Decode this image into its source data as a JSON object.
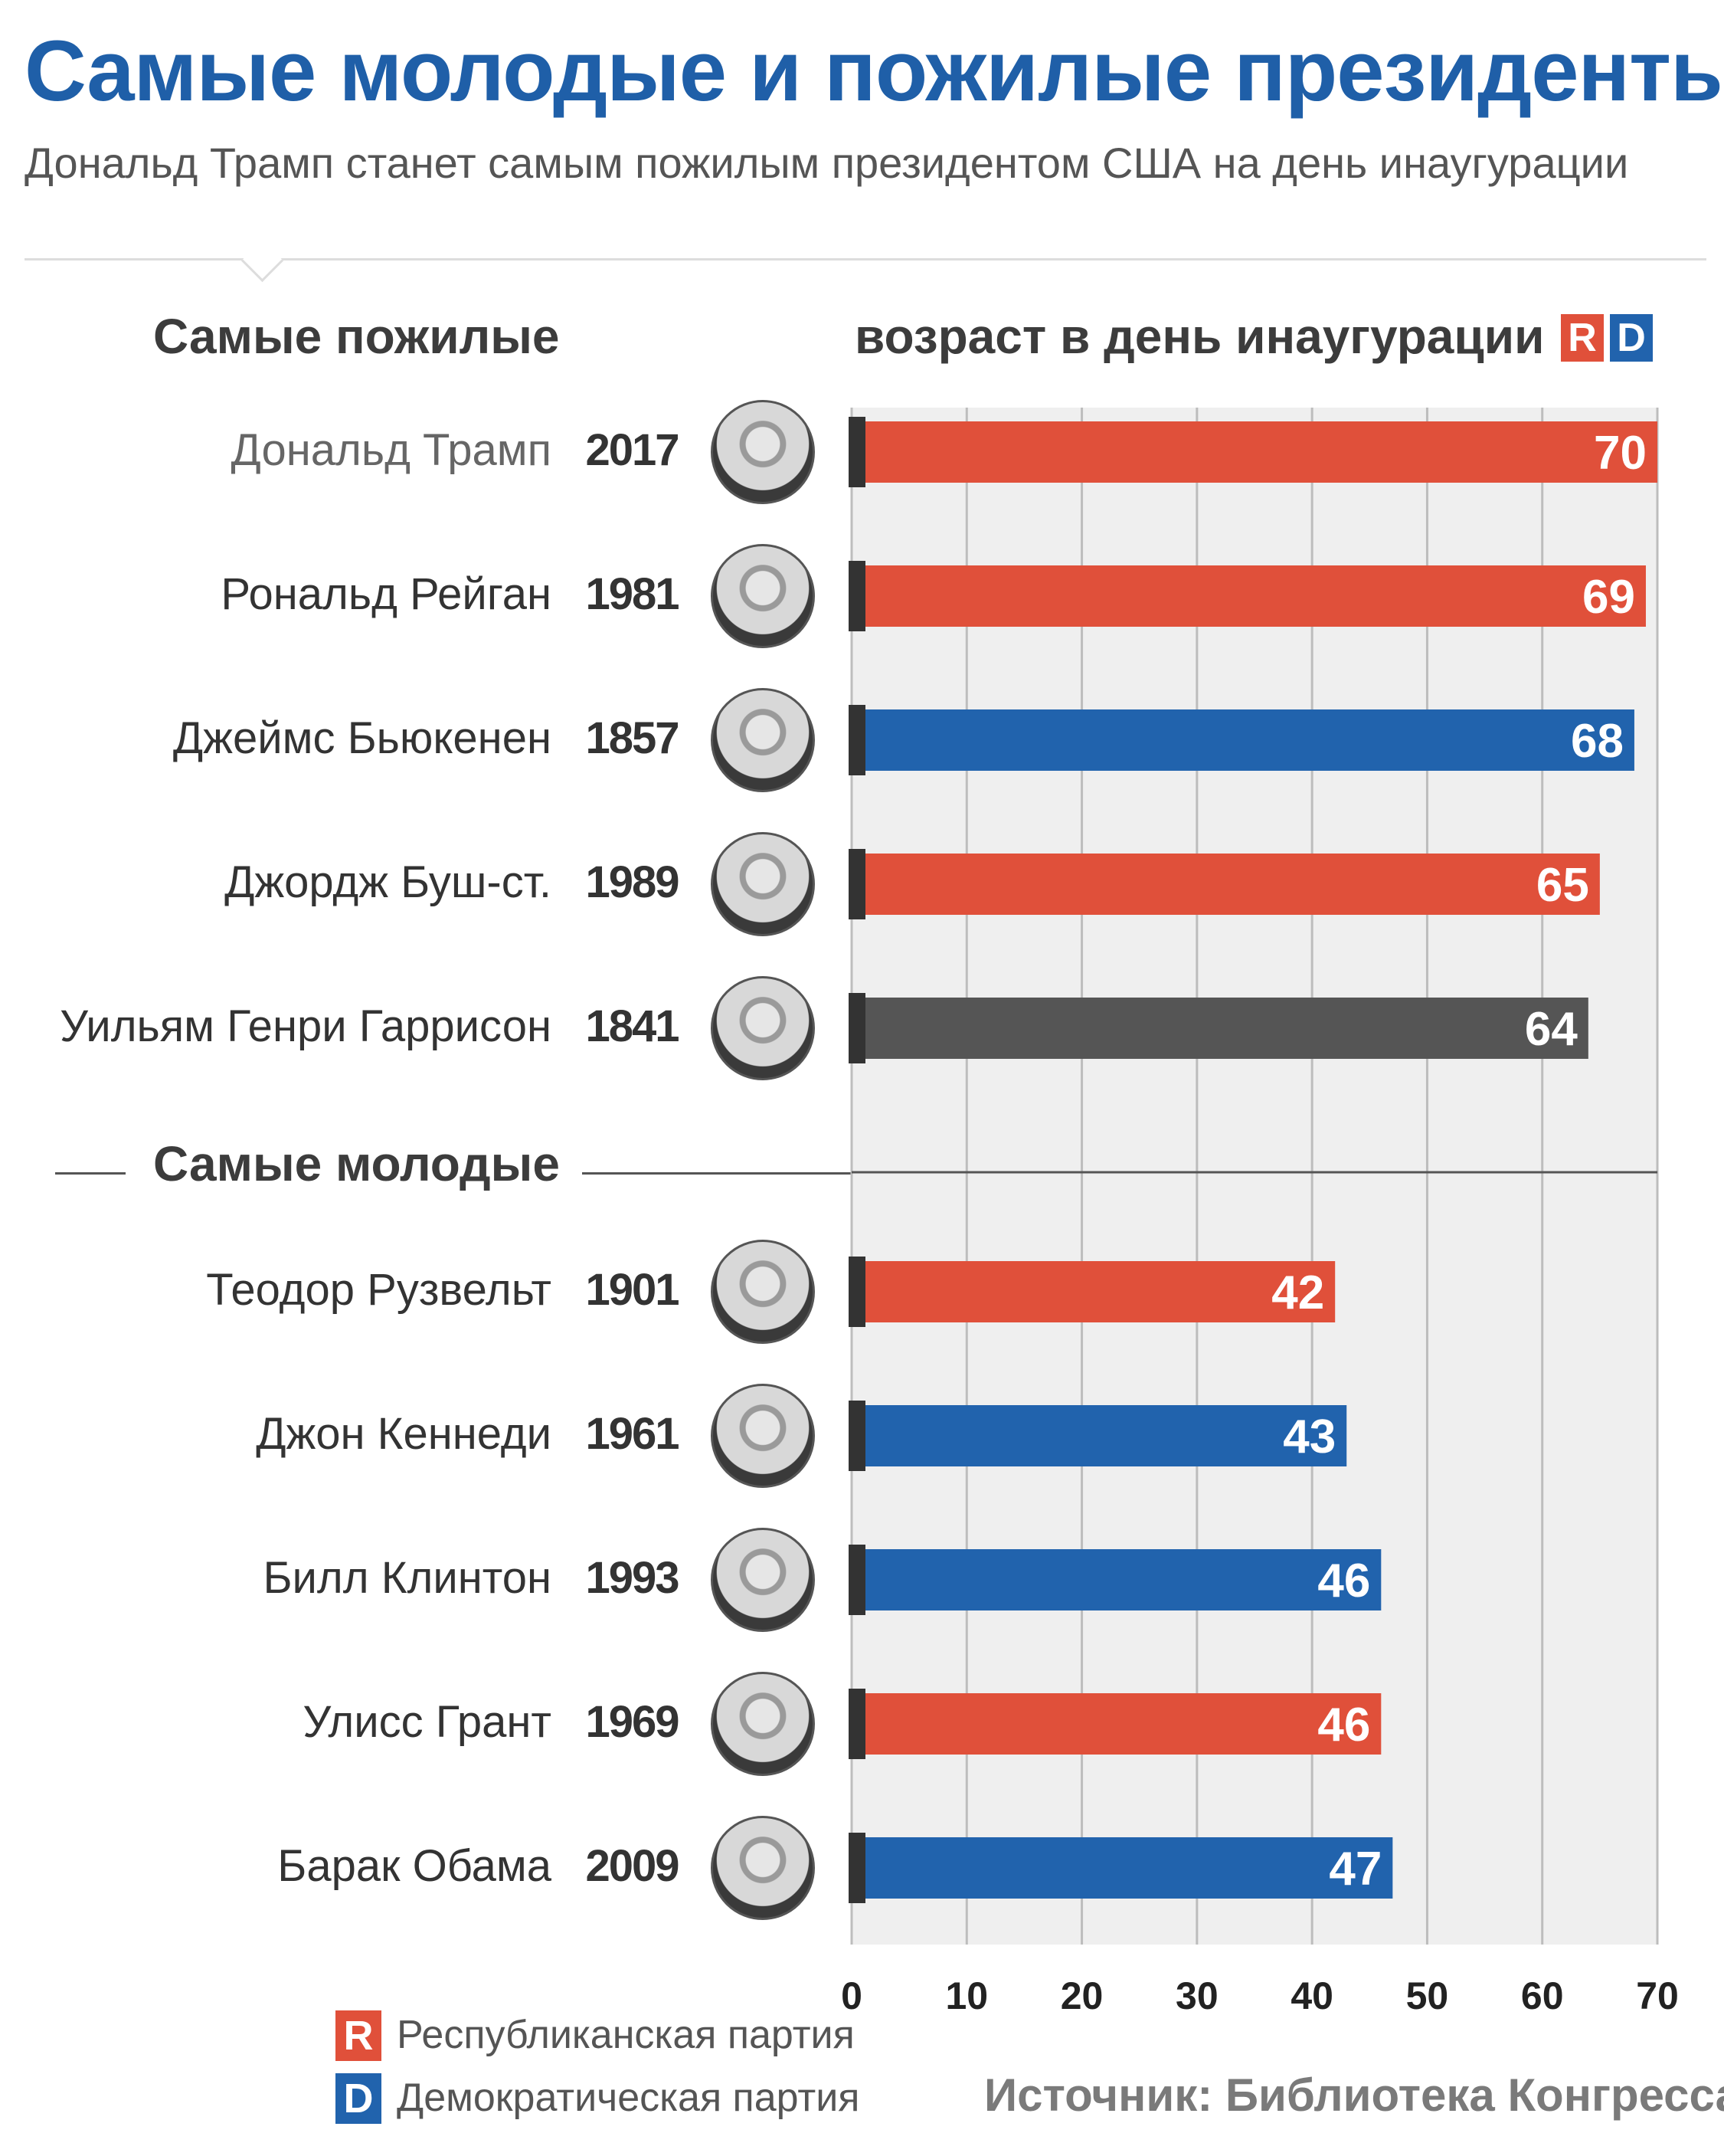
{
  "title": "Самые молодые и пожилые президенты",
  "subtitle": "Дональд Трамп станет самым пожилым президентом США на день инаугурации",
  "sections": {
    "oldest": "Самые пожилые",
    "youngest": "Самые молодые"
  },
  "axis_title": "возраст в день инаугурации",
  "party_badges": {
    "r": "R",
    "d": "D"
  },
  "legend": {
    "r_letter": "R",
    "r_label": "Республиканская партия",
    "d_letter": "D",
    "d_label": "Демократическая партия"
  },
  "source": "Источник: Библиотека Конгресса",
  "colors": {
    "title": "#1f5fa8",
    "republican": "#e0503a",
    "democratic": "#2163ad",
    "other": "#555555",
    "plot_bg": "#efefef",
    "grid": "#bdbdbd"
  },
  "chart_data": {
    "type": "bar",
    "orientation": "horizontal",
    "xlim": [
      0,
      70
    ],
    "xticks": [
      0,
      10,
      20,
      30,
      40,
      50,
      60,
      70
    ],
    "grid": true,
    "groups": [
      {
        "label": "Самые пожилые",
        "rows": [
          {
            "name": "Дональд Трамп",
            "year": "2017",
            "age": 70,
            "party": "R",
            "portrait": "trump-portrait"
          },
          {
            "name": "Рональд Рейган",
            "year": "1981",
            "age": 69,
            "party": "R",
            "portrait": "reagan-portrait"
          },
          {
            "name": "Джеймс Бьюкенен",
            "year": "1857",
            "age": 68,
            "party": "D",
            "portrait": "buchanan-portrait"
          },
          {
            "name": "Джордж Буш-ст.",
            "year": "1989",
            "age": 65,
            "party": "R",
            "portrait": "bush-portrait"
          },
          {
            "name": "Уильям Генри Гаррисон",
            "year": "1841",
            "age": 64,
            "party": "other",
            "portrait": "harrison-portrait"
          }
        ]
      },
      {
        "label": "Самые молодые",
        "rows": [
          {
            "name": "Теодор Рузвельт",
            "year": "1901",
            "age": 42,
            "party": "R",
            "portrait": "roosevelt-portrait"
          },
          {
            "name": "Джон Кеннеди",
            "year": "1961",
            "age": 43,
            "party": "D",
            "portrait": "kennedy-portrait"
          },
          {
            "name": "Билл Клинтон",
            "year": "1993",
            "age": 46,
            "party": "D",
            "portrait": "clinton-portrait"
          },
          {
            "name": "Улисс Грант",
            "year": "1969",
            "age": 46,
            "party": "R",
            "portrait": "grant-portrait"
          },
          {
            "name": "Барак Обама",
            "year": "2009",
            "age": 47,
            "party": "D",
            "portrait": "obama-portrait"
          }
        ]
      }
    ]
  }
}
